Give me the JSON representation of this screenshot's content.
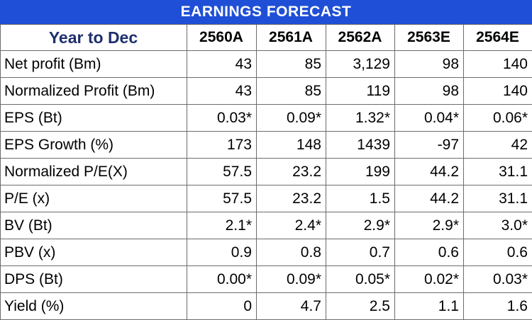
{
  "title": "EARNINGS FORECAST",
  "header": {
    "label": "Year to Dec",
    "years": [
      "2560A",
      "2561A",
      "2562A",
      "2563E",
      "2564E"
    ]
  },
  "rows": [
    {
      "label": "Net profit (Bm)",
      "values": [
        "43",
        "85",
        "3,129",
        "98",
        "140"
      ]
    },
    {
      "label": "Normalized Profit (Bm)",
      "values": [
        "43",
        "85",
        "119",
        "98",
        "140"
      ]
    },
    {
      "label": "EPS (Bt)",
      "values": [
        "0.03*",
        "0.09*",
        "1.32*",
        "0.04*",
        "0.06*"
      ]
    },
    {
      "label": "EPS Growth (%)",
      "values": [
        "173",
        "148",
        "1439",
        "-97",
        "42"
      ]
    },
    {
      "label": "Normalized P/E(X)",
      "values": [
        "57.5",
        "23.2",
        "199",
        "44.2",
        "31.1"
      ]
    },
    {
      "label": "P/E (x)",
      "values": [
        "57.5",
        "23.2",
        "1.5",
        "44.2",
        "31.1"
      ]
    },
    {
      "label": "BV (Bt)",
      "values": [
        "2.1*",
        "2.4*",
        "2.9*",
        "2.9*",
        "3.0*"
      ]
    },
    {
      "label": "PBV (x)",
      "values": [
        "0.9",
        "0.8",
        "0.7",
        "0.6",
        "0.6"
      ]
    },
    {
      "label": "DPS (Bt)",
      "values": [
        "0.00*",
        "0.09*",
        "0.05*",
        "0.02*",
        "0.03*"
      ]
    },
    {
      "label": "Yield (%)",
      "values": [
        "0",
        "4.7",
        "2.5",
        "1.1",
        "1.6"
      ]
    }
  ],
  "colors": {
    "banner": "#1f4fd6",
    "header_label": "#1f2f6e"
  }
}
